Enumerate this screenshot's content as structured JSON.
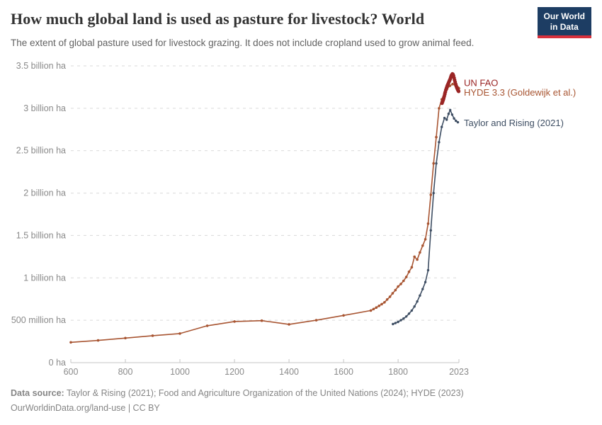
{
  "header": {
    "title": "How much global land is used as pasture for livestock? World",
    "subtitle": "The extent of global pasture used for livestock grazing. It does not include cropland used to grow animal feed.",
    "logo": {
      "line1": "Our World",
      "line2": "in Data",
      "bg_color": "#1d3d63",
      "accent_color": "#d8313c"
    }
  },
  "chart_data": {
    "type": "line",
    "title": "How much global land is used as pasture for livestock? World",
    "xlabel": "",
    "ylabel": "",
    "unit": "hectares",
    "values_unit": "million hectares",
    "grid": "horizontal-dashed",
    "legend_position": "right-of-line-ends",
    "xlim": [
      600,
      2023
    ],
    "ylim": [
      0,
      3500
    ],
    "xticks": [
      600,
      800,
      1000,
      1200,
      1400,
      1600,
      1800,
      2023
    ],
    "yticks": [
      {
        "value": 0,
        "label": "0 ha"
      },
      {
        "value": 500,
        "label": "500 million ha"
      },
      {
        "value": 1000,
        "label": "1 billion ha"
      },
      {
        "value": 1500,
        "label": "1.5 billion ha"
      },
      {
        "value": 2000,
        "label": "2 billion ha"
      },
      {
        "value": 2500,
        "label": "2.5 billion ha"
      },
      {
        "value": 3000,
        "label": "3 billion ha"
      },
      {
        "value": 3500,
        "label": "3.5 billion ha"
      }
    ],
    "series": [
      {
        "name": "HYDE 3.3 (Goldewijk et al.)",
        "color": "#A85532",
        "line_width": 1.6,
        "marker_radius": 1.8,
        "label_dy": 6,
        "points": [
          [
            600,
            240
          ],
          [
            700,
            262
          ],
          [
            800,
            290
          ],
          [
            900,
            318
          ],
          [
            1000,
            343
          ],
          [
            1100,
            435
          ],
          [
            1200,
            485
          ],
          [
            1300,
            495
          ],
          [
            1400,
            452
          ],
          [
            1500,
            500
          ],
          [
            1600,
            557
          ],
          [
            1700,
            615
          ],
          [
            1710,
            632
          ],
          [
            1720,
            650
          ],
          [
            1730,
            670
          ],
          [
            1740,
            690
          ],
          [
            1750,
            712
          ],
          [
            1760,
            745
          ],
          [
            1770,
            778
          ],
          [
            1780,
            818
          ],
          [
            1790,
            855
          ],
          [
            1800,
            898
          ],
          [
            1810,
            928
          ],
          [
            1820,
            965
          ],
          [
            1830,
            1010
          ],
          [
            1840,
            1072
          ],
          [
            1850,
            1125
          ],
          [
            1860,
            1250
          ],
          [
            1870,
            1215
          ],
          [
            1880,
            1300
          ],
          [
            1890,
            1380
          ],
          [
            1900,
            1455
          ],
          [
            1910,
            1640
          ],
          [
            1920,
            1980
          ],
          [
            1930,
            2350
          ],
          [
            1940,
            2660
          ],
          [
            1950,
            3000
          ],
          [
            1960,
            3105
          ],
          [
            1970,
            3180
          ],
          [
            1980,
            3230
          ],
          [
            1990,
            3265
          ],
          [
            2000,
            3285
          ],
          [
            2010,
            3270
          ],
          [
            2020,
            3245
          ],
          [
            2023,
            3235
          ]
        ]
      },
      {
        "name": "Taylor and Rising (2021)",
        "color": "#3E4E63",
        "line_width": 1.6,
        "marker_radius": 1.7,
        "label_dy": 1,
        "points": [
          [
            1781,
            455
          ],
          [
            1790,
            467
          ],
          [
            1800,
            480
          ],
          [
            1810,
            500
          ],
          [
            1820,
            520
          ],
          [
            1830,
            545
          ],
          [
            1840,
            578
          ],
          [
            1850,
            615
          ],
          [
            1860,
            662
          ],
          [
            1870,
            722
          ],
          [
            1880,
            792
          ],
          [
            1890,
            868
          ],
          [
            1900,
            950
          ],
          [
            1910,
            1090
          ],
          [
            1920,
            1560
          ],
          [
            1930,
            2000
          ],
          [
            1940,
            2350
          ],
          [
            1950,
            2600
          ],
          [
            1960,
            2780
          ],
          [
            1970,
            2885
          ],
          [
            1978,
            2865
          ],
          [
            1985,
            2935
          ],
          [
            1991,
            2980
          ],
          [
            1998,
            2925
          ],
          [
            2005,
            2880
          ],
          [
            2012,
            2852
          ],
          [
            2019,
            2835
          ]
        ]
      },
      {
        "name": "UN FAO",
        "color": "#9A2525",
        "line_width": 2.4,
        "marker_radius": 2.6,
        "label_dy": -12,
        "points": [
          [
            1961,
            3060
          ],
          [
            1963,
            3078
          ],
          [
            1965,
            3096
          ],
          [
            1967,
            3115
          ],
          [
            1969,
            3140
          ],
          [
            1971,
            3165
          ],
          [
            1973,
            3190
          ],
          [
            1975,
            3215
          ],
          [
            1977,
            3235
          ],
          [
            1979,
            3255
          ],
          [
            1981,
            3270
          ],
          [
            1983,
            3285
          ],
          [
            1985,
            3300
          ],
          [
            1987,
            3315
          ],
          [
            1989,
            3330
          ],
          [
            1991,
            3345
          ],
          [
            1993,
            3365
          ],
          [
            1995,
            3385
          ],
          [
            1997,
            3395
          ],
          [
            1999,
            3405
          ],
          [
            2001,
            3400
          ],
          [
            2003,
            3385
          ],
          [
            2005,
            3360
          ],
          [
            2007,
            3335
          ],
          [
            2009,
            3310
          ],
          [
            2011,
            3285
          ],
          [
            2013,
            3265
          ],
          [
            2015,
            3245
          ],
          [
            2017,
            3230
          ],
          [
            2019,
            3215
          ],
          [
            2021,
            3205
          ],
          [
            2022,
            3200
          ]
        ]
      }
    ]
  },
  "footer": {
    "source_label": "Data source:",
    "source_text": " Taylor & Rising (2021); Food and Agriculture Organization of the United Nations (2024); HYDE (2023)",
    "license_line": "OurWorldinData.org/land-use | CC BY"
  }
}
